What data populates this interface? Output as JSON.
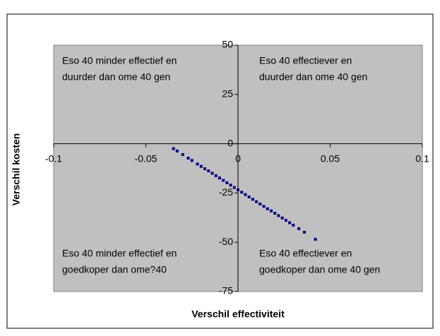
{
  "chart_data": {
    "type": "scatter",
    "xlabel": "Verschil effectiviteit",
    "ylabel": "Verschil kosten",
    "xlim": [
      -0.1,
      0.1
    ],
    "xticks": [
      -0.1,
      -0.05,
      0,
      0.05,
      0.1
    ],
    "ylim": [
      -75,
      50
    ],
    "yticks": [
      -75,
      -50,
      -25,
      0,
      25,
      50
    ],
    "color": "#000080",
    "plot_background": "#c0c0c0",
    "annotations": [
      [
        "Eso 40 minder effectief en",
        "duurder dan ome 40 gen"
      ],
      [
        "Eso 40 effectiever en",
        "duurder dan ome 40 gen"
      ],
      [
        "Eso 40 minder effectief en",
        "goedkoper dan ome?40"
      ],
      [
        "Eso 40 effectiever en",
        "goedkoper dan ome 40 gen"
      ]
    ],
    "series": [
      {
        "name": null,
        "color": "#000080",
        "x": [
          -0.035,
          -0.033,
          -0.03,
          -0.027,
          -0.025,
          -0.022,
          -0.02,
          -0.018,
          -0.016,
          -0.014,
          -0.012,
          -0.01,
          -0.008,
          -0.006,
          -0.004,
          -0.002,
          0,
          0.002,
          0.004,
          0.006,
          0.008,
          0.01,
          0.012,
          0.014,
          0.016,
          0.018,
          0.02,
          0.022,
          0.024,
          0.026,
          0.028,
          0.03,
          0.033,
          0.036,
          0.042
        ],
        "values": [
          -2.5,
          -3.7,
          -5.5,
          -7.3,
          -8.5,
          -10.3,
          -11.5,
          -12.7,
          -13.8,
          -15.0,
          -16.2,
          -17.4,
          -18.6,
          -19.8,
          -21.0,
          -22.2,
          -23.4,
          -24.6,
          -25.8,
          -27.0,
          -28.2,
          -29.4,
          -30.6,
          -31.8,
          -33.0,
          -34.1,
          -35.3,
          -36.5,
          -37.7,
          -38.9,
          -40.1,
          -41.3,
          -43.1,
          -44.9,
          -48.5
        ]
      }
    ]
  }
}
